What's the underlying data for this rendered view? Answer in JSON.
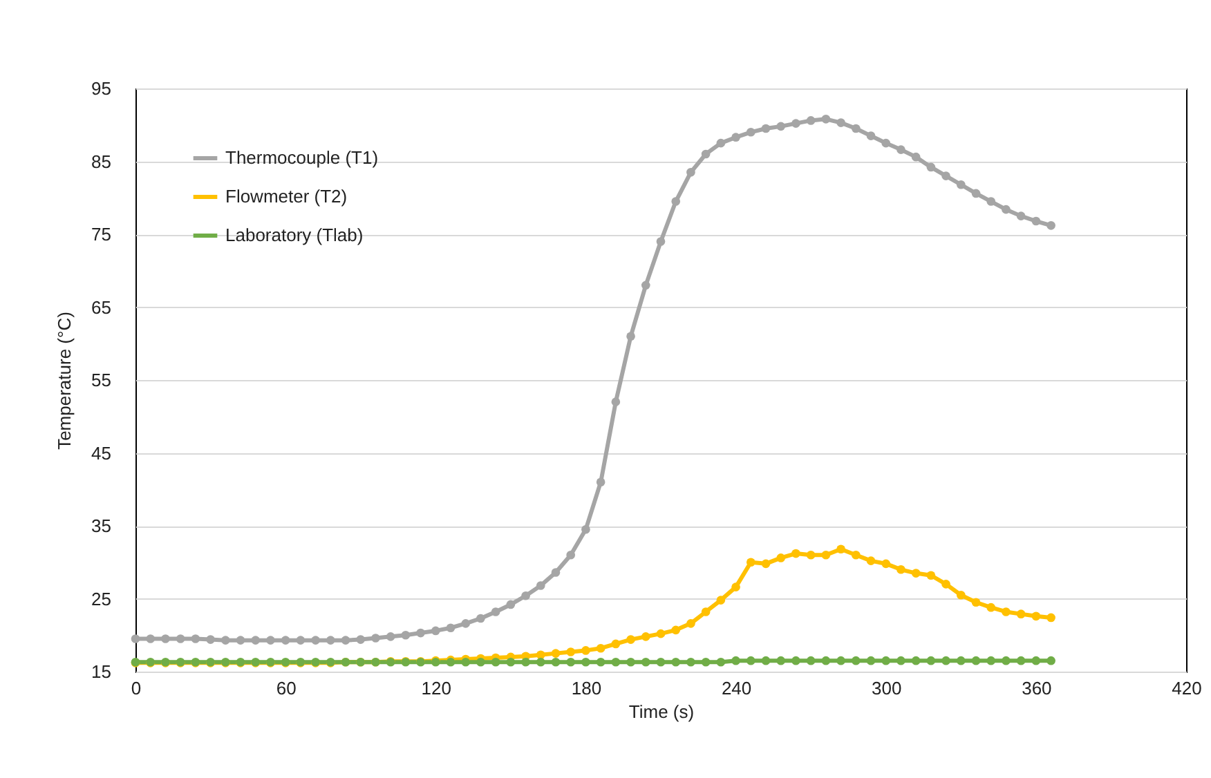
{
  "chart_data": {
    "type": "line",
    "xlabel": "Time (s)",
    "ylabel": "Temperature (°C)",
    "x": [
      0,
      6,
      12,
      18,
      24,
      30,
      36,
      42,
      48,
      54,
      60,
      66,
      72,
      78,
      84,
      90,
      96,
      102,
      108,
      114,
      120,
      126,
      132,
      138,
      144,
      150,
      156,
      162,
      168,
      174,
      180,
      186,
      192,
      198,
      204,
      210,
      216,
      222,
      228,
      234,
      240,
      246,
      252,
      258,
      264,
      270,
      276,
      282,
      288,
      294,
      300,
      306,
      312,
      318,
      324,
      330,
      336,
      342,
      348,
      354,
      360,
      366
    ],
    "series": [
      {
        "name": "Thermocouple (T1)",
        "color": "#a5a5a5",
        "values": [
          19.5,
          19.5,
          19.5,
          19.5,
          19.5,
          19.4,
          19.3,
          19.3,
          19.3,
          19.3,
          19.3,
          19.3,
          19.3,
          19.3,
          19.3,
          19.4,
          19.6,
          19.8,
          20.0,
          20.3,
          20.6,
          21.0,
          21.6,
          22.3,
          23.2,
          24.2,
          25.4,
          26.8,
          28.6,
          31.0,
          34.5,
          41,
          52,
          61,
          68,
          74,
          79.5,
          83.5,
          86,
          87.5,
          88.3,
          89,
          89.5,
          89.8,
          90.2,
          90.6,
          90.8,
          90.3,
          89.5,
          88.5,
          87.5,
          86.6,
          85.6,
          84.2,
          83,
          81.8,
          80.6,
          79.5,
          78.4,
          77.5,
          76.8,
          76.2
        ]
      },
      {
        "name": "Flowmeter (T2)",
        "color": "#ffc000",
        "values": [
          16.2,
          16.2,
          16.2,
          16.2,
          16.2,
          16.2,
          16.2,
          16.2,
          16.2,
          16.2,
          16.2,
          16.2,
          16.2,
          16.2,
          16.3,
          16.3,
          16.3,
          16.4,
          16.4,
          16.4,
          16.5,
          16.6,
          16.7,
          16.8,
          16.9,
          17.0,
          17.1,
          17.3,
          17.5,
          17.7,
          17.9,
          18.2,
          18.8,
          19.4,
          19.8,
          20.2,
          20.7,
          21.6,
          23.2,
          24.8,
          26.6,
          30,
          29.8,
          30.6,
          31.2,
          31,
          31,
          31.8,
          31,
          30.2,
          29.8,
          29,
          28.5,
          28.2,
          27,
          25.5,
          24.5,
          23.8,
          23.2,
          22.9,
          22.6,
          22.4
        ]
      },
      {
        "name": "Laboratory (Tlab)",
        "color": "#70ad47",
        "values": [
          16.3,
          16.3,
          16.3,
          16.3,
          16.3,
          16.3,
          16.3,
          16.3,
          16.3,
          16.3,
          16.3,
          16.3,
          16.3,
          16.3,
          16.3,
          16.3,
          16.3,
          16.3,
          16.3,
          16.3,
          16.3,
          16.3,
          16.3,
          16.3,
          16.3,
          16.3,
          16.3,
          16.3,
          16.3,
          16.3,
          16.3,
          16.3,
          16.3,
          16.3,
          16.3,
          16.3,
          16.3,
          16.3,
          16.3,
          16.3,
          16.5,
          16.5,
          16.5,
          16.5,
          16.5,
          16.5,
          16.5,
          16.5,
          16.5,
          16.5,
          16.5,
          16.5,
          16.5,
          16.5,
          16.5,
          16.5,
          16.5,
          16.5,
          16.5,
          16.5,
          16.5,
          16.5
        ]
      }
    ],
    "xlim": [
      0,
      420
    ],
    "xticks": [
      0,
      60,
      120,
      180,
      240,
      300,
      360,
      420
    ],
    "ylim": [
      15,
      95
    ],
    "yticks": [
      15,
      25,
      35,
      45,
      55,
      65,
      75,
      85,
      95
    ],
    "grid": "y",
    "legend": "top left",
    "marker": "circle",
    "line_style": "solid"
  }
}
